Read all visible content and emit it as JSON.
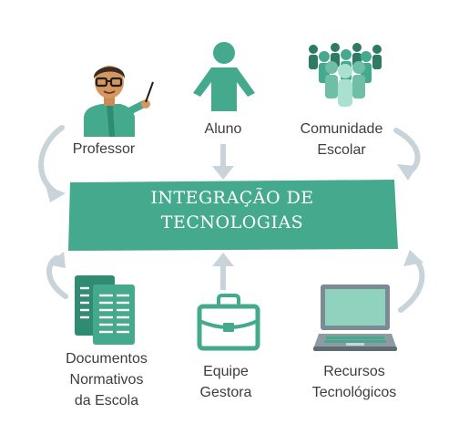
{
  "center": {
    "line1": "INTEGRAÇÃO DE",
    "line2": "TECNOLOGIAS"
  },
  "nodes": {
    "professor": {
      "label": "Professor"
    },
    "aluno": {
      "label": "Aluno"
    },
    "comunidade": {
      "line1": "Comunidade",
      "line2": "Escolar"
    },
    "documentos": {
      "line1": "Documentos",
      "line2": "Normativos",
      "line3": "da Escola"
    },
    "equipe": {
      "line1": "Equipe",
      "line2": "Gestora"
    },
    "recursos": {
      "line1": "Recursos",
      "line2": "Tecnológicos"
    }
  },
  "colors": {
    "teal": "#45a98e",
    "teal_dark": "#2f8c73",
    "teal_light": "#8fd3bf",
    "arrow": "#c9d3da",
    "label": "#3d3d3d"
  },
  "icons": [
    "teacher-icon",
    "student-icon",
    "community-icon",
    "documents-icon",
    "briefcase-icon",
    "laptop-icon"
  ]
}
